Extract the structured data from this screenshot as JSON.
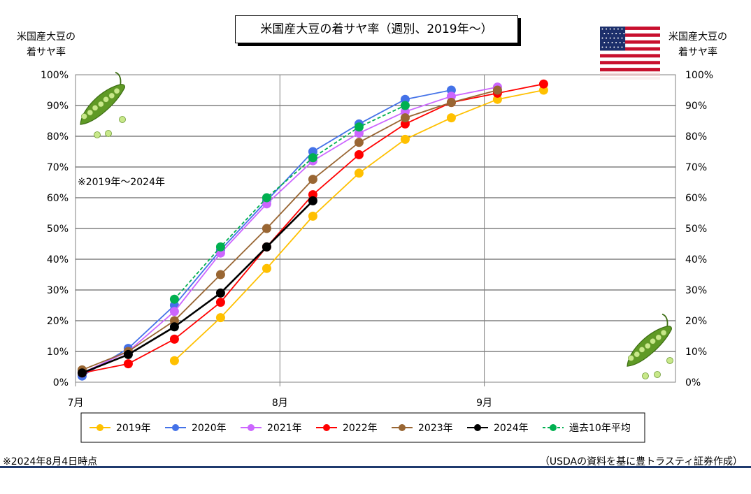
{
  "title": "米国産大豆の着サヤ率（週別、2019年～）",
  "left_axis_title": [
    "米国産大豆の",
    "着サヤ率"
  ],
  "right_axis_title": [
    "米国産大豆の",
    "着サヤ率"
  ],
  "annotation": "※2019年～2024年",
  "footnote": "※2024年8月4日時点",
  "credit": "（USDAの資料を基に豊トラスティ証券作成）",
  "icons": [
    "pea-pod-icon",
    "us-flag-icon"
  ],
  "chart_data": {
    "type": "line",
    "x_range": [
      "2024-07-01",
      "2024-09-30"
    ],
    "x_ticks": [
      {
        "date": "2024-07-01",
        "label": "7月"
      },
      {
        "date": "2024-08-01",
        "label": "8月"
      },
      {
        "date": "2024-09-01",
        "label": "9月"
      }
    ],
    "ylim": [
      0,
      100
    ],
    "y_ticks": [
      "0%",
      "10%",
      "20%",
      "30%",
      "40%",
      "50%",
      "60%",
      "70%",
      "80%",
      "90%",
      "100%"
    ],
    "grid": true,
    "legend_position": "bottom",
    "series": [
      {
        "name": "2019年",
        "color": "#ffc000",
        "dashed": false,
        "points": [
          [
            "2024-07-16",
            7
          ],
          [
            "2024-07-23",
            21
          ],
          [
            "2024-07-30",
            37
          ],
          [
            "2024-08-06",
            54
          ],
          [
            "2024-08-13",
            68
          ],
          [
            "2024-08-20",
            79
          ],
          [
            "2024-08-27",
            86
          ],
          [
            "2024-09-03",
            92
          ],
          [
            "2024-09-10",
            95
          ]
        ]
      },
      {
        "name": "2020年",
        "color": "#4472e8",
        "dashed": false,
        "points": [
          [
            "2024-07-02",
            2
          ],
          [
            "2024-07-09",
            11
          ],
          [
            "2024-07-16",
            25
          ],
          [
            "2024-07-23",
            43
          ],
          [
            "2024-07-30",
            59
          ],
          [
            "2024-08-06",
            75
          ],
          [
            "2024-08-13",
            84
          ],
          [
            "2024-08-20",
            92
          ],
          [
            "2024-08-27",
            95
          ]
        ]
      },
      {
        "name": "2021年",
        "color": "#cc66ff",
        "dashed": false,
        "points": [
          [
            "2024-07-02",
            3
          ],
          [
            "2024-07-09",
            10
          ],
          [
            "2024-07-16",
            23
          ],
          [
            "2024-07-23",
            42
          ],
          [
            "2024-07-30",
            58
          ],
          [
            "2024-08-06",
            72
          ],
          [
            "2024-08-13",
            81
          ],
          [
            "2024-08-20",
            88
          ],
          [
            "2024-08-27",
            93
          ],
          [
            "2024-09-03",
            96
          ]
        ]
      },
      {
        "name": "2022年",
        "color": "#ff0000",
        "dashed": false,
        "points": [
          [
            "2024-07-02",
            3
          ],
          [
            "2024-07-09",
            6
          ],
          [
            "2024-07-16",
            14
          ],
          [
            "2024-07-23",
            26
          ],
          [
            "2024-07-30",
            44
          ],
          [
            "2024-08-06",
            61
          ],
          [
            "2024-08-13",
            74
          ],
          [
            "2024-08-20",
            84
          ],
          [
            "2024-08-27",
            91
          ],
          [
            "2024-09-03",
            94
          ],
          [
            "2024-09-10",
            97
          ]
        ]
      },
      {
        "name": "2023年",
        "color": "#996633",
        "dashed": false,
        "points": [
          [
            "2024-07-02",
            4
          ],
          [
            "2024-07-09",
            10
          ],
          [
            "2024-07-16",
            20
          ],
          [
            "2024-07-23",
            35
          ],
          [
            "2024-07-30",
            50
          ],
          [
            "2024-08-06",
            66
          ],
          [
            "2024-08-13",
            78
          ],
          [
            "2024-08-20",
            86
          ],
          [
            "2024-08-27",
            91
          ],
          [
            "2024-09-03",
            95
          ]
        ]
      },
      {
        "name": "2024年",
        "color": "#000000",
        "dashed": false,
        "points": [
          [
            "2024-07-02",
            3
          ],
          [
            "2024-07-09",
            9
          ],
          [
            "2024-07-16",
            18
          ],
          [
            "2024-07-23",
            29
          ],
          [
            "2024-07-30",
            44
          ],
          [
            "2024-08-06",
            59
          ]
        ]
      },
      {
        "name": "過去10年平均",
        "color": "#00b050",
        "dashed": true,
        "points": [
          [
            "2024-07-16",
            27
          ],
          [
            "2024-07-23",
            44
          ],
          [
            "2024-07-30",
            60
          ],
          [
            "2024-08-06",
            73
          ],
          [
            "2024-08-13",
            83
          ],
          [
            "2024-08-20",
            90
          ]
        ]
      }
    ]
  }
}
